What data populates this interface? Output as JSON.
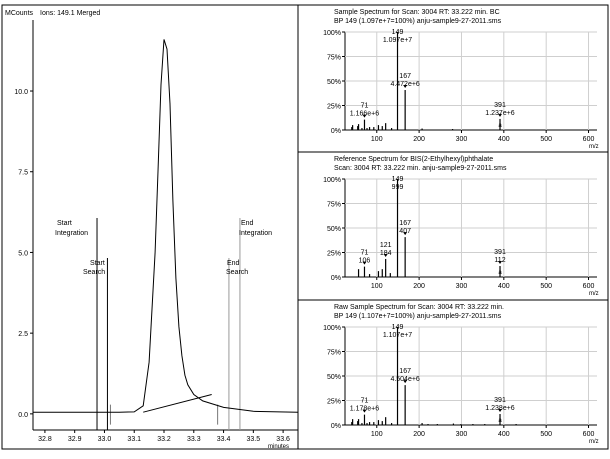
{
  "left_panel": {
    "ylabel": "MCounts",
    "title": "Ions: 149.1 Merged",
    "xlabel": "minutes",
    "x_ticks": [
      "32.8",
      "32.9",
      "33.0",
      "33.1",
      "33.2",
      "33.3",
      "33.4",
      "33.5",
      "33.6"
    ],
    "y_ticks": [
      "0.0",
      "2.5",
      "5.0",
      "7.5",
      "10.0"
    ],
    "markers": [
      {
        "label1": "Start",
        "label2": "Integration"
      },
      {
        "label1": "Start",
        "label2": "Search"
      },
      {
        "label1": "End",
        "label2": "Search"
      },
      {
        "label1": "End",
        "label2": "Integration"
      }
    ]
  },
  "spectra": [
    {
      "title1": "Sample Spectrum for Scan: 3004 RT: 33.222 min. BC",
      "title2": "BP 149 (1.097e+7=100%) anju-sample9-27-2011.sms",
      "peak_labels": [
        {
          "mz": "71",
          "val": "1.166e+6"
        },
        {
          "mz": "149",
          "val": "1.097e+7"
        },
        {
          "mz": "167",
          "val": "4.472e+6"
        },
        {
          "mz": "391",
          "val": "1.237e+6"
        }
      ],
      "a_mark": "a"
    },
    {
      "title1": "Reference Spectrum for BIS(2-Ethylhexyl)phthalate",
      "title2": "Scan: 3004 RT: 33.222 min. anju-sample9-27-2011.sms",
      "peak_labels": [
        {
          "mz": "71",
          "val": "106"
        },
        {
          "mz": "121",
          "val": "184"
        },
        {
          "mz": "149",
          "val": "999"
        },
        {
          "mz": "167",
          "val": "407"
        },
        {
          "mz": "391",
          "val": "112"
        }
      ],
      "a_mark": "a"
    },
    {
      "title1": "Raw Sample Spectrum for Scan: 3004 RT: 33.222 min.",
      "title2": "BP 149 (1.107e+7=100%) anju-sample9-27-2011.sms",
      "peak_labels": [
        {
          "mz": "71",
          "val": "1.178e+6"
        },
        {
          "mz": "149",
          "val": "1.107e+7"
        },
        {
          "mz": "167",
          "val": "4.504e+6"
        },
        {
          "mz": "391",
          "val": "1.238e+6"
        }
      ],
      "a_mark": "a"
    }
  ],
  "spectrum_axis": {
    "y_ticks": [
      "0%",
      "25%",
      "50%",
      "75%",
      "100%"
    ],
    "x_ticks": [
      "100",
      "200",
      "300",
      "400",
      "500",
      "600"
    ],
    "xlabel": "m/z"
  },
  "chart_data": [
    {
      "type": "line",
      "title": "Ions: 149.1 Merged",
      "xlabel": "minutes",
      "ylabel": "MCounts",
      "xlim": [
        32.76,
        33.65
      ],
      "ylim": [
        -0.5,
        12.2
      ],
      "series": [
        {
          "x": [
            32.76,
            32.95,
            33.05,
            33.1,
            33.13,
            33.15,
            33.17,
            33.18,
            33.19,
            33.2,
            33.21,
            33.22,
            33.23,
            33.24,
            33.25,
            33.26,
            33.27,
            33.28,
            33.3,
            33.33,
            33.4,
            33.5,
            33.65
          ],
          "y": [
            0.05,
            0.05,
            0.05,
            0.06,
            0.25,
            1.6,
            5.0,
            7.6,
            10.2,
            11.6,
            11.3,
            9.6,
            6.6,
            4.2,
            2.7,
            1.8,
            1.2,
            0.9,
            0.6,
            0.4,
            0.2,
            0.08,
            0.05
          ]
        },
        {
          "x": [
            33.13,
            33.36
          ],
          "y": [
            0.05,
            0.6
          ]
        }
      ],
      "markers_x": [
        32.975,
        33.01,
        33.418,
        33.455
      ]
    },
    {
      "type": "bar",
      "title": "Sample Spectrum for Scan: 3004 RT: 33.222 min. BC",
      "xlabel": "m/z",
      "xlim": [
        25,
        620
      ],
      "ylim": [
        0,
        100
      ],
      "x": [
        41,
        43,
        55,
        57,
        65,
        71,
        77,
        83,
        93,
        104,
        113,
        121,
        135,
        149,
        167,
        207,
        279,
        391
      ],
      "values": [
        3,
        5,
        4,
        6,
        2,
        10.6,
        2,
        3,
        3,
        5,
        4,
        7,
        2,
        100,
        40.8,
        1.5,
        1,
        11.3
      ]
    },
    {
      "type": "bar",
      "title": "Reference Spectrum for BIS(2-Ethylhexyl)phthalate",
      "xlabel": "m/z",
      "xlim": [
        25,
        620
      ],
      "ylim": [
        0,
        100
      ],
      "x": [
        57,
        71,
        83,
        104,
        113,
        121,
        132,
        149,
        167,
        391
      ],
      "values": [
        8,
        10.6,
        3,
        6,
        8,
        18.4,
        4,
        100,
        40.7,
        11.2
      ]
    },
    {
      "type": "bar",
      "title": "Raw Sample Spectrum for Scan: 3004 RT: 33.222 min.",
      "xlabel": "m/z",
      "xlim": [
        25,
        620
      ],
      "ylim": [
        0,
        100
      ],
      "x": [
        41,
        43,
        55,
        57,
        65,
        71,
        77,
        83,
        93,
        104,
        113,
        121,
        135,
        149,
        167,
        207,
        221,
        243,
        281,
        299,
        327,
        355,
        391,
        429
      ],
      "values": [
        3,
        6,
        4,
        6,
        2,
        10.6,
        2,
        3,
        3,
        5,
        4,
        8,
        2,
        100,
        40.7,
        2,
        1,
        1,
        1.5,
        1,
        1,
        1,
        11.2,
        1
      ]
    }
  ]
}
